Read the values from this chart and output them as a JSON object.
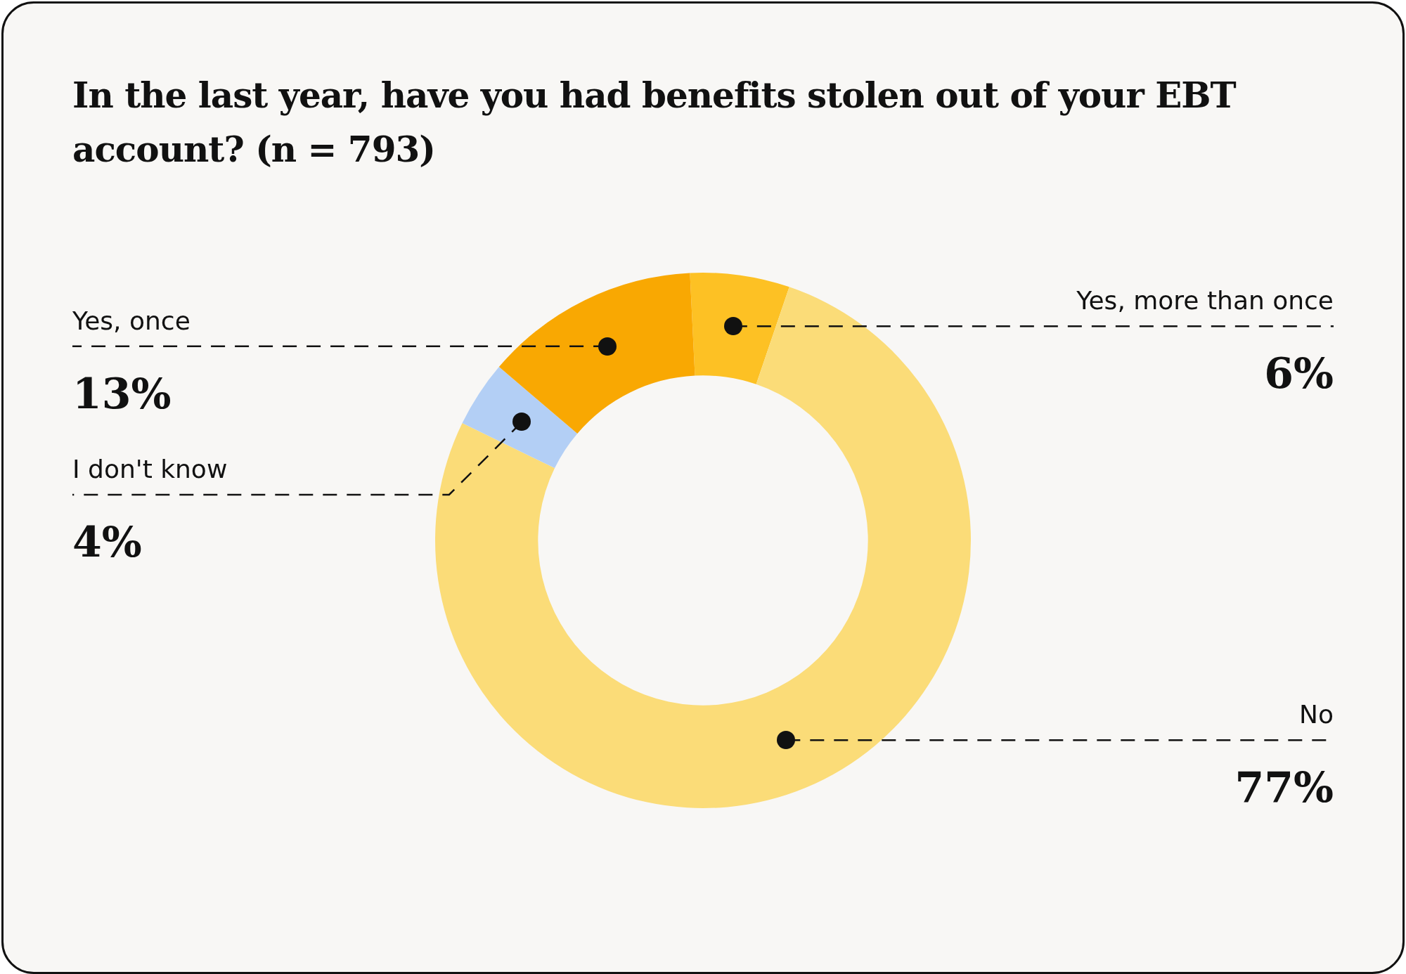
{
  "chart_data": {
    "type": "donut",
    "title": "In the last year, have you had benefits stolen out of your EBT account? (n = 793)",
    "categories": [
      "Yes, more than once",
      "No",
      "I don't know",
      "Yes, once"
    ],
    "values": [
      6,
      77,
      4,
      13
    ],
    "colors": [
      "#fdc124",
      "#fbdc78",
      "#b3cff5",
      "#f9a802"
    ],
    "value_labels": [
      "6%",
      "77%",
      "4%",
      "13%"
    ]
  }
}
